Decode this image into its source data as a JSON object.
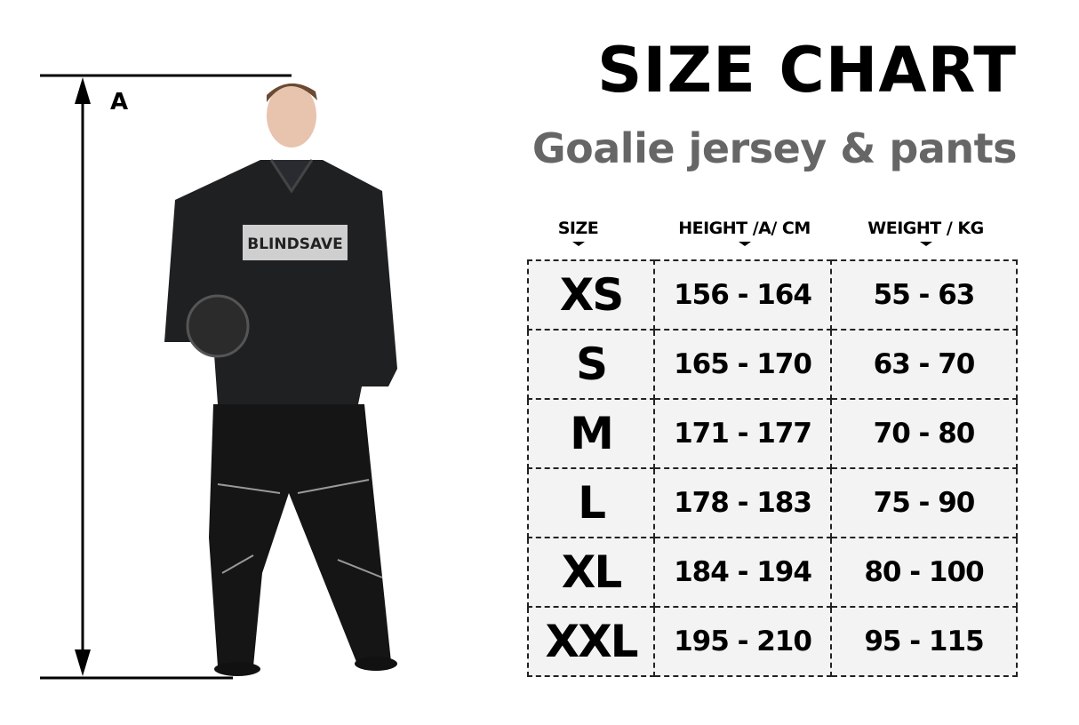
{
  "title": "SIZE CHART",
  "subtitle": "Goalie jersey & pants",
  "measure_label": "A",
  "jersey_logo": "BLINDSAVE",
  "table": {
    "headers": [
      "SIZE",
      "HEIGHT /A/ CM",
      "WEIGHT / KG"
    ],
    "rows": [
      {
        "size": "XS",
        "height": "156 - 164",
        "weight": "55 - 63"
      },
      {
        "size": "S",
        "height": "165 - 170",
        "weight": "63 - 70"
      },
      {
        "size": "M",
        "height": "171 - 177",
        "weight": "70 - 80"
      },
      {
        "size": "L",
        "height": "178 - 183",
        "weight": "75 - 90"
      },
      {
        "size": "XL",
        "height": "184 - 194",
        "weight": "80 - 100"
      },
      {
        "size": "XXL",
        "height": "195 - 210",
        "weight": "95 - 115"
      }
    ]
  }
}
